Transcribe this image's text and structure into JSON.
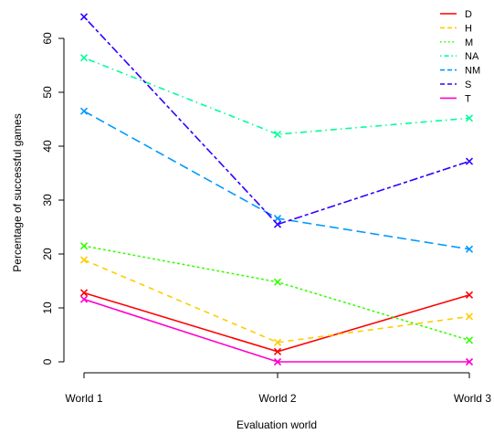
{
  "chart_data": {
    "type": "line",
    "title": "",
    "xlabel": "Evaluation world",
    "ylabel": "Percentage of successful games",
    "categories": [
      "World 1",
      "World 2",
      "World 3"
    ],
    "yticks": [
      0,
      10,
      20,
      30,
      40,
      50,
      60
    ],
    "ylim": [
      0,
      64
    ],
    "grid": false,
    "legend_position": "top-right",
    "marker": "x",
    "series": [
      {
        "name": "D",
        "values": [
          12.8,
          1.9,
          12.4
        ],
        "color": "#ff0000",
        "dash": "solid"
      },
      {
        "name": "H",
        "values": [
          18.9,
          3.6,
          8.4
        ],
        "color": "#ffcc00",
        "dash": "dashed"
      },
      {
        "name": "M",
        "values": [
          21.5,
          14.8,
          4.0
        ],
        "color": "#33ff00",
        "dash": "dotted"
      },
      {
        "name": "NA",
        "values": [
          56.4,
          42.2,
          45.2
        ],
        "color": "#00ff99",
        "dash": "dotdash"
      },
      {
        "name": "NM",
        "values": [
          46.5,
          26.6,
          20.9
        ],
        "color": "#0099ff",
        "dash": "longdash"
      },
      {
        "name": "S",
        "values": [
          64.0,
          25.5,
          37.2
        ],
        "color": "#3300ff",
        "dash": "twodash"
      },
      {
        "name": "T",
        "values": [
          11.6,
          0.0,
          0.0
        ],
        "color": "#ff00cc",
        "dash": "solid"
      }
    ]
  }
}
